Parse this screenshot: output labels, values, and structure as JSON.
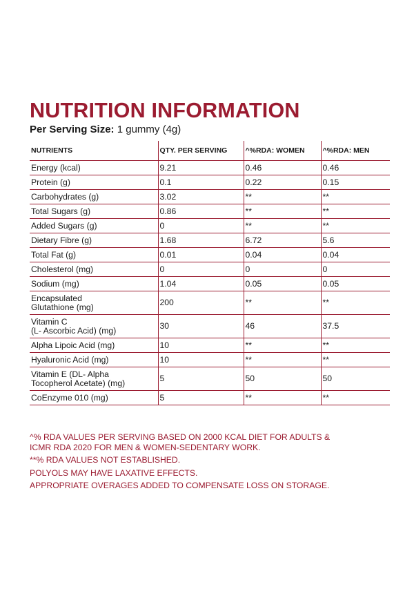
{
  "title": "NUTRITION INFORMATION",
  "serving": {
    "label": "Per Serving Size:",
    "value": "1 gummy (4g)"
  },
  "table": {
    "headers": [
      "NUTRIENTS",
      "QTY. PER SERVING",
      "^%RDA: WOMEN",
      "^%RDA: MEN"
    ],
    "rows": [
      {
        "name": "Energy (kcal)",
        "qty": "9.21",
        "women": "0.46",
        "men": "0.46"
      },
      {
        "name": "Protein (g)",
        "qty": "0.1",
        "women": "0.22",
        "men": "0.15"
      },
      {
        "name": "Carbohydrates (g)",
        "qty": "3.02",
        "women": "**",
        "men": "**"
      },
      {
        "name": "Total Sugars (g)",
        "qty": "0.86",
        "women": "**",
        "men": "**"
      },
      {
        "name": "Added Sugars (g)",
        "qty": "0",
        "women": "**",
        "men": "**"
      },
      {
        "name": "Dietary Fibre (g)",
        "qty": "1.68",
        "women": "6.72",
        "men": "5.6"
      },
      {
        "name": "Total Fat (g)",
        "qty": "0.01",
        "women": "0.04",
        "men": "0.04"
      },
      {
        "name": "Cholesterol (mg)",
        "qty": "0",
        "women": "0",
        "men": "0"
      },
      {
        "name": "Sodium (mg)",
        "qty": "1.04",
        "women": "0.05",
        "men": "0.05"
      },
      {
        "name_line1": "Encapsulated",
        "name_line2": "Glutathione (mg)",
        "qty": "200",
        "women": "**",
        "men": "**"
      },
      {
        "name_line1": "Vitamin C",
        "name_line2": "(L- Ascorbic Acid) (mg)",
        "qty": "30",
        "women": "46",
        "men": "37.5"
      },
      {
        "name": "Alpha Lipoic Acid (mg)",
        "qty": "10",
        "women": "**",
        "men": "**"
      },
      {
        "name": "Hyaluronic Acid (mg)",
        "qty": "10",
        "women": "**",
        "men": "**"
      },
      {
        "name_line1": "Vitamin E (DL- Alpha",
        "name_line2": "Tocopherol Acetate) (mg)",
        "qty": "5",
        "women": "50",
        "men": "50"
      },
      {
        "name": "CoEnzyme 010 (mg)",
        "qty": "5",
        "women": "**",
        "men": "**"
      }
    ]
  },
  "notes": {
    "rda_line1": "^% RDA VALUES PER SERVING BASED ON 2000 KCAL DIET FOR ADULTS &",
    "rda_line2": "ICMR RDA 2020 FOR MEN & WOMEN-SEDENTARY WORK.",
    "not_established": "**% RDA VALUES NOT ESTABLISHED.",
    "polyols": "POLYOLS MAY HAVE LAXATIVE EFFECTS.",
    "overages": "APPROPRIATE OVERAGES ADDED TO COMPENSATE LOSS ON STORAGE."
  },
  "colors": {
    "accent": "#9b1b30",
    "text": "#1a1a1a",
    "background": "#ffffff"
  }
}
